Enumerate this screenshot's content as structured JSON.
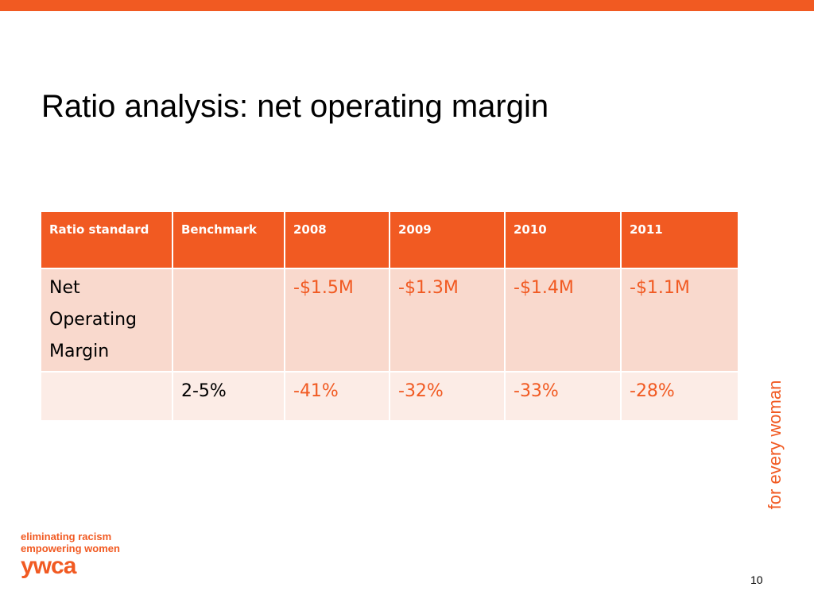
{
  "slide": {
    "title": "Ratio analysis: net operating margin",
    "page_number": "10",
    "tagline": "for every woman"
  },
  "logo": {
    "line1": "eliminating racism",
    "line2": "empowering women",
    "brand": "ywca"
  },
  "table": {
    "headers": [
      "Ratio standard",
      "Benchmark",
      "2008",
      "2009",
      "2010",
      "2011"
    ],
    "rows": [
      [
        "Net Operating Margin",
        "",
        "-$1.5M",
        "-$1.3M",
        "-$1.4M",
        "-$1.1M"
      ],
      [
        "",
        "2-5%",
        "-41%",
        "-32%",
        "-33%",
        "-28%"
      ]
    ]
  },
  "colors": {
    "accent": "#f15a22",
    "row_dark": "#f9d9cd",
    "row_light": "#fcece6"
  }
}
